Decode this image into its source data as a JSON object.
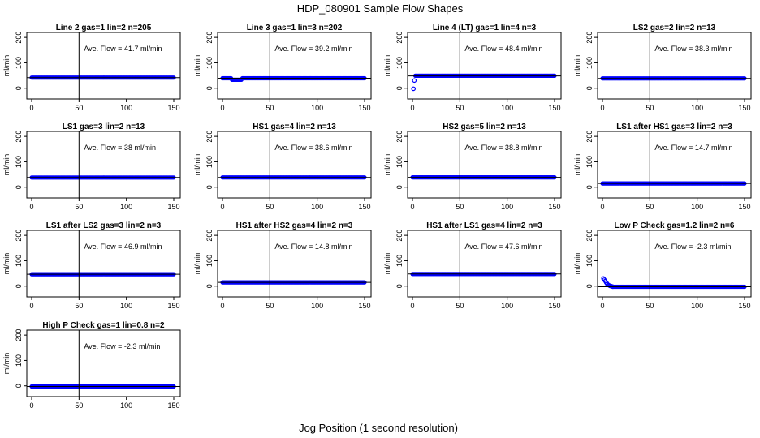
{
  "figure": {
    "title": "HDP_080901  Sample Flow Shapes",
    "xlabel": "Jog Position (1 second resolution)",
    "ylabel": "ml/min",
    "colors": {
      "points": "#0000ff",
      "axes": "#000000",
      "text": "#000000"
    }
  },
  "chart_data": [
    {
      "type": "scatter",
      "title": "Line 2 gas=1 lin=2 n=205",
      "annotation": "Ave. Flow =  41.7  ml/min",
      "xlim": [
        0,
        150
      ],
      "ylim": [
        -20,
        210
      ],
      "xticks": [
        0,
        50,
        100,
        150
      ],
      "yticks": [
        0,
        100,
        200
      ],
      "vline_x": 50,
      "hline_y": 41.7,
      "series": [
        {
          "name": "flow",
          "x_start": 0,
          "x_end": 150,
          "value": 41.7
        }
      ]
    },
    {
      "type": "scatter",
      "title": "Line 3 gas=1 lin=3 n=202",
      "annotation": "Ave. Flow =  39.2  ml/min",
      "xlim": [
        0,
        150
      ],
      "ylim": [
        -20,
        210
      ],
      "xticks": [
        0,
        50,
        100,
        150
      ],
      "yticks": [
        0,
        100,
        200
      ],
      "vline_x": 50,
      "hline_y": 39.2,
      "series": [
        {
          "name": "flow",
          "x_start": 0,
          "x_end": 150,
          "value": 39.2,
          "dip": {
            "x_from": 10,
            "x_to": 20,
            "value": 33
          }
        }
      ]
    },
    {
      "type": "scatter",
      "title": "Line 4 (LT) gas=1 lin=4 n=3",
      "annotation": "Ave. Flow =  48.4  ml/min",
      "xlim": [
        0,
        150
      ],
      "ylim": [
        -20,
        210
      ],
      "xticks": [
        0,
        50,
        100,
        150
      ],
      "yticks": [
        0,
        100,
        200
      ],
      "vline_x": 50,
      "hline_y": 48.4,
      "series": [
        {
          "name": "flow",
          "x_start": 3,
          "x_end": 150,
          "value": 49,
          "start_points": [
            [
              1,
              -2
            ],
            [
              2,
              30
            ]
          ]
        }
      ]
    },
    {
      "type": "scatter",
      "title": "LS2 gas=2 lin=2 n=13",
      "annotation": "Ave. Flow =  38.3  ml/min",
      "xlim": [
        0,
        150
      ],
      "ylim": [
        -20,
        210
      ],
      "xticks": [
        0,
        50,
        100,
        150
      ],
      "yticks": [
        0,
        100,
        200
      ],
      "vline_x": 50,
      "hline_y": 38.3,
      "series": [
        {
          "name": "flow",
          "x_start": 0,
          "x_end": 150,
          "value": 38.3
        }
      ]
    },
    {
      "type": "scatter",
      "title": "LS1 gas=3 lin=2 n=13",
      "annotation": "Ave. Flow =  38  ml/min",
      "xlim": [
        0,
        150
      ],
      "ylim": [
        -20,
        210
      ],
      "xticks": [
        0,
        50,
        100,
        150
      ],
      "yticks": [
        0,
        100,
        200
      ],
      "vline_x": 50,
      "hline_y": 38,
      "series": [
        {
          "name": "flow",
          "x_start": 0,
          "x_end": 150,
          "value": 38
        }
      ]
    },
    {
      "type": "scatter",
      "title": "HS1 gas=4 lin=2 n=13",
      "annotation": "Ave. Flow =  38.6  ml/min",
      "xlim": [
        0,
        150
      ],
      "ylim": [
        -20,
        210
      ],
      "xticks": [
        0,
        50,
        100,
        150
      ],
      "yticks": [
        0,
        100,
        200
      ],
      "vline_x": 50,
      "hline_y": 38.6,
      "series": [
        {
          "name": "flow",
          "x_start": 0,
          "x_end": 150,
          "value": 38.6
        }
      ]
    },
    {
      "type": "scatter",
      "title": "HS2 gas=5 lin=2 n=13",
      "annotation": "Ave. Flow =  38.8  ml/min",
      "xlim": [
        0,
        150
      ],
      "ylim": [
        -20,
        210
      ],
      "xticks": [
        0,
        50,
        100,
        150
      ],
      "yticks": [
        0,
        100,
        200
      ],
      "vline_x": 50,
      "hline_y": 38.8,
      "series": [
        {
          "name": "flow",
          "x_start": 0,
          "x_end": 150,
          "value": 38.8
        }
      ]
    },
    {
      "type": "scatter",
      "title": "LS1 after HS1 gas=3 lin=2 n=3",
      "annotation": "Ave. Flow =  14.7  ml/min",
      "xlim": [
        0,
        150
      ],
      "ylim": [
        -20,
        210
      ],
      "xticks": [
        0,
        50,
        100,
        150
      ],
      "yticks": [
        0,
        100,
        200
      ],
      "vline_x": 50,
      "hline_y": 14.7,
      "series": [
        {
          "name": "flow",
          "x_start": 0,
          "x_end": 150,
          "value": 14.7
        }
      ]
    },
    {
      "type": "scatter",
      "title": "LS1 after LS2 gas=3 lin=2 n=3",
      "annotation": "Ave. Flow =  46.9  ml/min",
      "xlim": [
        0,
        150
      ],
      "ylim": [
        -20,
        210
      ],
      "xticks": [
        0,
        50,
        100,
        150
      ],
      "yticks": [
        0,
        100,
        200
      ],
      "vline_x": 50,
      "hline_y": 46.9,
      "series": [
        {
          "name": "flow",
          "x_start": 0,
          "x_end": 150,
          "value": 46.9
        }
      ]
    },
    {
      "type": "scatter",
      "title": "HS1 after HS2 gas=4 lin=2 n=3",
      "annotation": "Ave. Flow =  14.8  ml/min",
      "xlim": [
        0,
        150
      ],
      "ylim": [
        -20,
        210
      ],
      "xticks": [
        0,
        50,
        100,
        150
      ],
      "yticks": [
        0,
        100,
        200
      ],
      "vline_x": 50,
      "hline_y": 14.8,
      "series": [
        {
          "name": "flow",
          "x_start": 0,
          "x_end": 150,
          "value": 14.8
        }
      ]
    },
    {
      "type": "scatter",
      "title": "HS1 after LS1 gas=4 lin=2 n=3",
      "annotation": "Ave. Flow =  47.6  ml/min",
      "xlim": [
        0,
        150
      ],
      "ylim": [
        -20,
        210
      ],
      "xticks": [
        0,
        50,
        100,
        150
      ],
      "yticks": [
        0,
        100,
        200
      ],
      "vline_x": 50,
      "hline_y": 47.6,
      "series": [
        {
          "name": "flow",
          "x_start": 0,
          "x_end": 150,
          "value": 47.6
        }
      ]
    },
    {
      "type": "scatter",
      "title": "Low P Check gas=1.2 lin=2 n=6",
      "annotation": "Ave. Flow =  -2.3  ml/min",
      "xlim": [
        0,
        150
      ],
      "ylim": [
        -20,
        210
      ],
      "xticks": [
        0,
        50,
        100,
        150
      ],
      "yticks": [
        0,
        100,
        200
      ],
      "vline_x": 50,
      "hline_y": -2.3,
      "series": [
        {
          "name": "flow",
          "x_start": 12,
          "x_end": 150,
          "value": -2.3,
          "start_points": [
            [
              1,
              30
            ],
            [
              2,
              25
            ],
            [
              3,
              20
            ],
            [
              4,
              14
            ],
            [
              5,
              9
            ],
            [
              6,
              5
            ],
            [
              7,
              3
            ],
            [
              8,
              1
            ],
            [
              9,
              0
            ],
            [
              10,
              -1
            ],
            [
              11,
              -2
            ]
          ]
        }
      ]
    },
    {
      "type": "scatter",
      "title": "High P Check gas=1 lin=0.8 n=2",
      "annotation": "Ave. Flow =  -2.3  ml/min",
      "xlim": [
        0,
        150
      ],
      "ylim": [
        -20,
        210
      ],
      "xticks": [
        0,
        50,
        100,
        150
      ],
      "yticks": [
        0,
        100,
        200
      ],
      "vline_x": 50,
      "hline_y": -2.3,
      "series": [
        {
          "name": "flow",
          "x_start": 0,
          "x_end": 150,
          "value": -2.3
        }
      ]
    }
  ]
}
